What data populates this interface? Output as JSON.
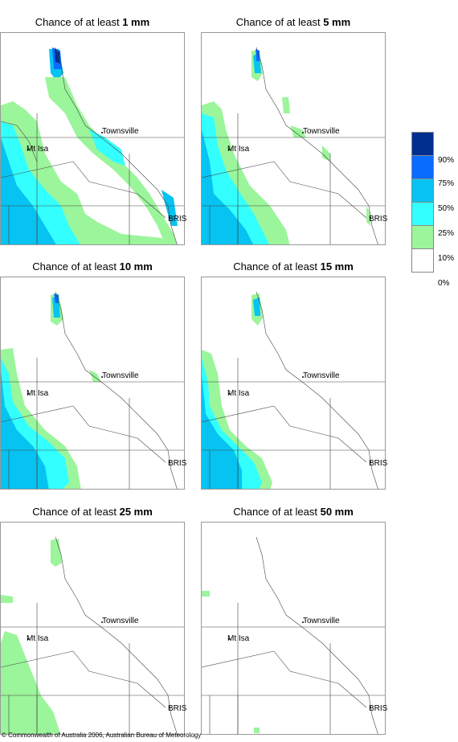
{
  "panels": [
    {
      "prefix": "Chance of at least",
      "amount": "1 mm"
    },
    {
      "prefix": "Chance of at least",
      "amount": "5 mm"
    },
    {
      "prefix": "Chance of at least",
      "amount": "10 mm"
    },
    {
      "prefix": "Chance of at least",
      "amount": "15 mm"
    },
    {
      "prefix": "Chance of at least",
      "amount": "25 mm"
    },
    {
      "prefix": "Chance of at least",
      "amount": "50 mm"
    }
  ],
  "places": {
    "townsville": "Townsville",
    "mtisa": "Mt Isa",
    "bris": "BRIS"
  },
  "legend": {
    "labels": [
      "90%",
      "75%",
      "50%",
      "25%",
      "10%",
      "0%"
    ],
    "colors": [
      "#002f8f",
      "#0a6bff",
      "#06c3f2",
      "#33ffff",
      "#9bf59b",
      "#ffffff"
    ]
  },
  "footer": "© Commonwealth of Australia 2006, Australian Bureau of Meteorology"
}
